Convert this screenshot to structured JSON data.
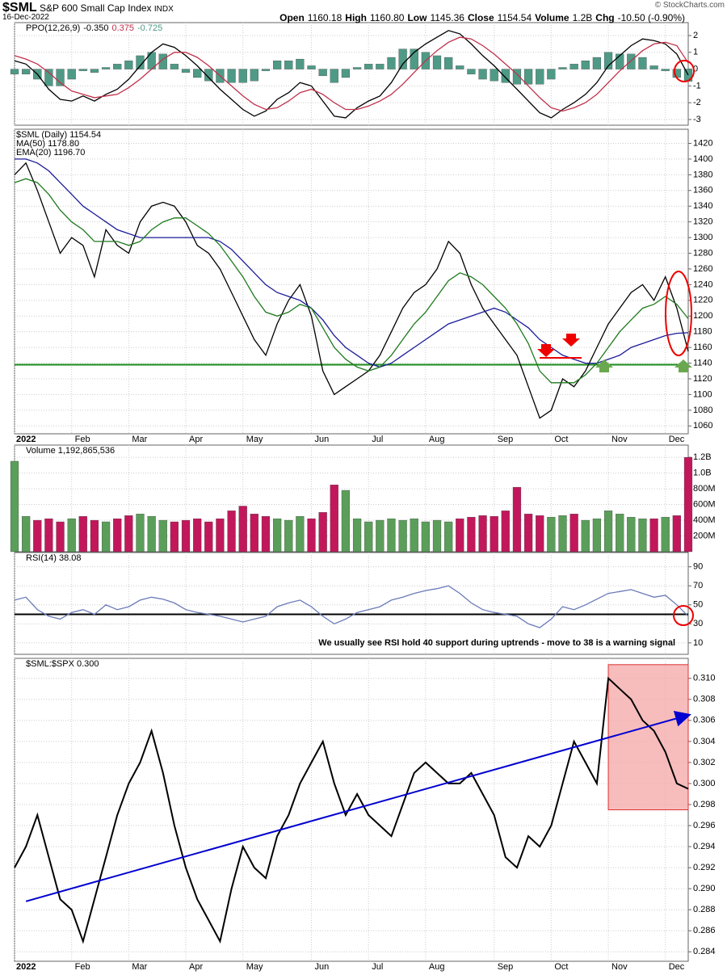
{
  "header": {
    "symbol": "$SML",
    "name": "S&P 600 Small Cap Index",
    "exchange": "INDX",
    "date": "16-Dec-2022",
    "quote": [
      [
        "Open",
        "1160.18"
      ],
      [
        "High",
        "1160.80"
      ],
      [
        "Low",
        "1145.36"
      ],
      [
        "Close",
        "1154.54"
      ],
      [
        "Volume",
        "1.2B"
      ],
      [
        "Chg",
        "-10.50 (-0.90%)"
      ]
    ],
    "copyright": "© StockCharts.com"
  },
  "xaxis": {
    "xlim": [
      0,
      59
    ],
    "xticks": [
      {
        "value": 0,
        "label": "2022"
      },
      {
        "value": 5,
        "label": "Feb"
      },
      {
        "value": 10,
        "label": "Mar"
      },
      {
        "value": 15,
        "label": "Apr"
      },
      {
        "value": 20,
        "label": "May"
      },
      {
        "value": 26,
        "label": "Jun"
      },
      {
        "value": 31,
        "label": "Jul"
      },
      {
        "value": 36,
        "label": "Aug"
      },
      {
        "value": 42,
        "label": "Sep"
      },
      {
        "value": 47,
        "label": "Oct"
      },
      {
        "value": 52,
        "label": "Nov"
      },
      {
        "value": 57,
        "label": "Dec"
      }
    ]
  },
  "chart_data": [
    {
      "type": "line",
      "label": "PPO(12,26,9)",
      "ylim": [
        -3.34,
        2.77
      ],
      "yticks": [
        -3,
        -2,
        -1,
        0,
        1,
        2
      ],
      "series": [
        {
          "name": "-0.350",
          "style": "line",
          "color": "#000000",
          "values": [
            0.5,
            0.3,
            -0.3,
            -1.2,
            -1.8,
            -1.9,
            -1.6,
            -1.9,
            -1.5,
            -1.2,
            -0.6,
            0.2,
            1.0,
            1.5,
            1.3,
            0.8,
            0.2,
            -0.5,
            -1.2,
            -1.8,
            -2.4,
            -2.8,
            -2.5,
            -1.8,
            -1.4,
            -0.8,
            -1.0,
            -1.9,
            -2.8,
            -2.9,
            -2.3,
            -1.9,
            -1.6,
            -0.8,
            0.3,
            1.0,
            1.5,
            1.9,
            2.3,
            2.1,
            1.5,
            0.8,
            0.2,
            -0.5,
            -1.2,
            -1.9,
            -2.6,
            -2.9,
            -2.4,
            -2.0,
            -1.5,
            -0.8,
            0.2,
            0.8,
            1.4,
            1.8,
            1.7,
            1.5,
            0.9,
            -0.35
          ]
        },
        {
          "name": "0.375",
          "style": "line",
          "color": "#c0304a",
          "values": [
            0.8,
            0.6,
            0.3,
            -0.2,
            -0.8,
            -1.3,
            -1.5,
            -1.7,
            -1.6,
            -1.5,
            -1.1,
            -0.6,
            0.0,
            0.6,
            1.0,
            1.0,
            0.7,
            0.2,
            -0.4,
            -1.0,
            -1.6,
            -2.1,
            -2.4,
            -2.3,
            -1.9,
            -1.4,
            -1.2,
            -1.5,
            -2.0,
            -2.4,
            -2.4,
            -2.2,
            -1.9,
            -1.5,
            -0.9,
            -0.2,
            0.5,
            1.1,
            1.6,
            1.9,
            1.8,
            1.4,
            0.9,
            0.3,
            -0.3,
            -1.0,
            -1.7,
            -2.3,
            -2.5,
            -2.3,
            -2.0,
            -1.5,
            -0.8,
            -0.1,
            0.5,
            1.1,
            1.5,
            1.6,
            1.4,
            0.375
          ]
        },
        {
          "name": "-0.725",
          "style": "bar",
          "color": "#4f9a86",
          "values": [
            -0.3,
            -0.3,
            -0.6,
            -1.0,
            -1.0,
            -0.6,
            -0.1,
            -0.2,
            0.1,
            0.3,
            0.5,
            0.8,
            1.0,
            0.9,
            0.3,
            -0.2,
            -0.5,
            -0.7,
            -0.8,
            -0.8,
            -0.8,
            -0.7,
            -0.1,
            0.5,
            0.5,
            0.6,
            0.2,
            -0.4,
            -0.8,
            -0.5,
            0.1,
            0.3,
            0.3,
            0.7,
            1.2,
            1.2,
            1.0,
            0.8,
            0.7,
            0.2,
            -0.3,
            -0.6,
            -0.7,
            -0.8,
            -0.9,
            -0.9,
            -0.9,
            -0.6,
            0.1,
            0.3,
            0.5,
            0.7,
            1.0,
            0.9,
            0.9,
            0.7,
            0.2,
            -0.1,
            -0.5,
            -0.725
          ]
        }
      ]
    },
    {
      "type": "line",
      "label": "",
      "ylim": [
        1050,
        1438
      ],
      "yticks": [
        1060,
        1080,
        1100,
        1120,
        1140,
        1160,
        1180,
        1200,
        1220,
        1240,
        1260,
        1280,
        1300,
        1320,
        1340,
        1360,
        1380,
        1400,
        1420
      ],
      "support_level": 1138,
      "support_color": "#1a8a1a",
      "series": [
        {
          "name": "$SML (Daily) 1154.54",
          "style": "line",
          "color": "#000000",
          "values": [
            1380,
            1395,
            1360,
            1320,
            1280,
            1300,
            1290,
            1250,
            1310,
            1290,
            1280,
            1320,
            1340,
            1345,
            1340,
            1320,
            1290,
            1280,
            1260,
            1230,
            1200,
            1170,
            1150,
            1190,
            1220,
            1240,
            1200,
            1130,
            1100,
            1110,
            1120,
            1130,
            1150,
            1180,
            1210,
            1230,
            1240,
            1260,
            1295,
            1280,
            1240,
            1210,
            1190,
            1170,
            1150,
            1110,
            1070,
            1080,
            1120,
            1110,
            1130,
            1160,
            1190,
            1210,
            1230,
            1240,
            1220,
            1250,
            1210,
            1155
          ]
        },
        {
          "name": "MA(50) 1178.80",
          "style": "line",
          "color": "#1a1a9a",
          "values": [
            1400,
            1400,
            1395,
            1385,
            1370,
            1355,
            1340,
            1330,
            1320,
            1310,
            1305,
            1300,
            1300,
            1300,
            1300,
            1300,
            1300,
            1300,
            1295,
            1285,
            1270,
            1255,
            1240,
            1230,
            1225,
            1220,
            1210,
            1195,
            1175,
            1160,
            1150,
            1140,
            1135,
            1140,
            1150,
            1160,
            1170,
            1180,
            1190,
            1195,
            1200,
            1205,
            1210,
            1205,
            1195,
            1185,
            1170,
            1160,
            1150,
            1145,
            1140,
            1140,
            1145,
            1150,
            1160,
            1165,
            1170,
            1175,
            1178,
            1178.8
          ]
        },
        {
          "name": "EMA(20) 1196.70",
          "style": "line",
          "color": "#1e7a1e",
          "values": [
            1370,
            1375,
            1370,
            1355,
            1335,
            1320,
            1310,
            1295,
            1295,
            1295,
            1290,
            1295,
            1310,
            1320,
            1325,
            1325,
            1315,
            1305,
            1290,
            1270,
            1250,
            1225,
            1205,
            1200,
            1205,
            1215,
            1210,
            1185,
            1160,
            1145,
            1135,
            1130,
            1135,
            1150,
            1170,
            1190,
            1205,
            1225,
            1245,
            1255,
            1250,
            1240,
            1225,
            1210,
            1190,
            1165,
            1130,
            1115,
            1115,
            1115,
            1125,
            1140,
            1160,
            1180,
            1195,
            1210,
            1215,
            1225,
            1215,
            1196.7
          ]
        }
      ]
    },
    {
      "type": "bar",
      "label": "Volume 1,192,865,536",
      "ylim": [
        0,
        1355000000
      ],
      "yticks": [
        {
          "value": 200000000,
          "label": "200M"
        },
        {
          "value": 400000000,
          "label": "400M"
        },
        {
          "value": 600000000,
          "label": "600M"
        },
        {
          "value": 800000000,
          "label": "800M"
        },
        {
          "value": 1000000000,
          "label": "1.0B"
        },
        {
          "value": 1200000000,
          "label": "1.2B"
        }
      ],
      "up_color": "#5a9e5a",
      "down_color": "#c2185b",
      "series": [
        {
          "name": "Volume",
          "style": "bar",
          "values": [
            1150000000,
            450000000,
            400000000,
            420000000,
            380000000,
            420000000,
            450000000,
            400000000,
            380000000,
            420000000,
            460000000,
            480000000,
            450000000,
            400000000,
            380000000,
            400000000,
            420000000,
            380000000,
            420000000,
            520000000,
            580000000,
            480000000,
            450000000,
            420000000,
            400000000,
            450000000,
            420000000,
            500000000,
            850000000,
            780000000,
            420000000,
            380000000,
            400000000,
            420000000,
            400000000,
            420000000,
            380000000,
            400000000,
            380000000,
            420000000,
            440000000,
            460000000,
            450000000,
            520000000,
            820000000,
            480000000,
            460000000,
            440000000,
            460000000,
            480000000,
            400000000,
            420000000,
            520000000,
            480000000,
            440000000,
            420000000,
            420000000,
            440000000,
            460000000,
            1200000000
          ]
        }
      ]
    },
    {
      "type": "line",
      "label": "RSI(14) 38.08",
      "ylim": [
        -2,
        105
      ],
      "yticks": [
        10,
        30,
        50,
        70,
        90
      ],
      "support_level": 40,
      "support_color": "#000000",
      "annotation": "We usually see RSI hold 40 support during uptrends - move to 38 is a warning signal",
      "series": [
        {
          "name": "RSI",
          "style": "line",
          "color": "#6a7bb8",
          "values": [
            55,
            58,
            45,
            38,
            35,
            42,
            45,
            40,
            50,
            45,
            48,
            55,
            58,
            56,
            52,
            45,
            42,
            40,
            38,
            35,
            32,
            35,
            38,
            48,
            52,
            55,
            48,
            38,
            30,
            35,
            42,
            45,
            48,
            55,
            58,
            62,
            65,
            67,
            70,
            62,
            52,
            45,
            42,
            40,
            38,
            30,
            26,
            35,
            48,
            45,
            50,
            56,
            62,
            64,
            66,
            62,
            58,
            60,
            50,
            38.08
          ]
        }
      ]
    },
    {
      "type": "line",
      "label": "$SML:$SPX 0.300",
      "ylim": [
        0.2831,
        0.3119
      ],
      "yticks": [
        0.284,
        0.286,
        0.288,
        {
          "value": 0.29,
          "label": "0.290"
        },
        0.292,
        0.294,
        0.296,
        0.298,
        {
          "value": 0.3,
          "label": "0.300"
        },
        0.302,
        0.304,
        0.306,
        0.308,
        {
          "value": 0.31,
          "label": "0.310"
        }
      ],
      "trendline": {
        "x": [
          1,
          59
        ],
        "y": [
          0.2888,
          0.3065
        ],
        "color": "#0000d0"
      },
      "highlight": {
        "x": [
          52,
          59
        ],
        "y": [
          0.2975,
          0.3113
        ],
        "color": "#f4a6a6"
      },
      "series": [
        {
          "name": "Ratio",
          "style": "line",
          "color": "#000000",
          "values": [
            0.292,
            0.294,
            0.297,
            0.293,
            0.289,
            0.288,
            0.285,
            0.289,
            0.293,
            0.297,
            0.3,
            0.302,
            0.305,
            0.301,
            0.296,
            0.292,
            0.289,
            0.287,
            0.285,
            0.29,
            0.294,
            0.292,
            0.291,
            0.295,
            0.297,
            0.3,
            0.302,
            0.304,
            0.3,
            0.297,
            0.299,
            0.297,
            0.296,
            0.295,
            0.298,
            0.301,
            0.302,
            0.301,
            0.3,
            0.3,
            0.301,
            0.299,
            0.297,
            0.293,
            0.292,
            0.295,
            0.294,
            0.296,
            0.3,
            0.304,
            0.302,
            0.3,
            0.31,
            0.309,
            0.308,
            0.306,
            0.305,
            0.303,
            0.3,
            0.2995
          ]
        }
      ]
    }
  ]
}
